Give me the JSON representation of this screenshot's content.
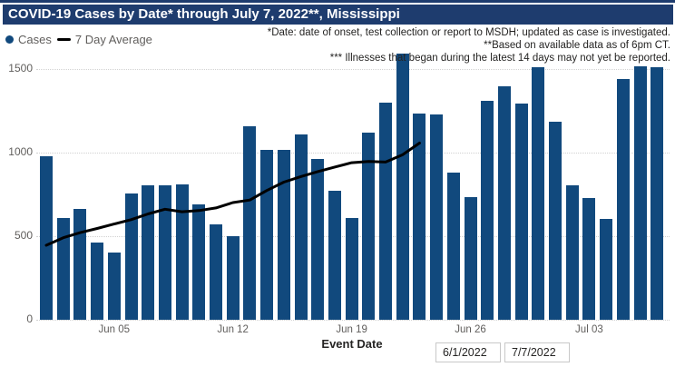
{
  "title": "COVID-19 Cases by Date* through July 7, 2022**, Mississippi",
  "legend": {
    "cases_label": "Cases",
    "avg_label": "7 Day Average"
  },
  "notes": [
    "*Date: date of onset, test collection or report to MSDH; updated as case is investigated.",
    "**Based on available data as of 6pm CT.",
    "*** Illnesses that began during the latest 14 days may not yet be reported."
  ],
  "x_axis": {
    "label": "Event Date",
    "ticks": [
      "Jun 05",
      "Jun 12",
      "Jun 19",
      "Jun 26",
      "Jul 03"
    ],
    "tick_indices": [
      4,
      11,
      18,
      25,
      32
    ]
  },
  "y_axis": {
    "ticks": [
      0,
      500,
      1000,
      1500
    ]
  },
  "date_filters": {
    "start": "6/1/2022",
    "end": "7/7/2022"
  },
  "colors": {
    "bar": "#11497d",
    "line": "#000000",
    "title_bg": "#1e3c6e",
    "axis_text": "#605e5c",
    "note_text": "#252423"
  },
  "chart_data": {
    "type": "bar",
    "title": "COVID-19 Cases by Date* through July 7, 2022**, Mississippi",
    "xlabel": "Event Date",
    "ylabel": "",
    "ylim": [
      0,
      1600
    ],
    "grid": "horizontal-dotted",
    "legend_position": "top-left",
    "categories": [
      "Jun 01",
      "Jun 02",
      "Jun 03",
      "Jun 04",
      "Jun 05",
      "Jun 06",
      "Jun 07",
      "Jun 08",
      "Jun 09",
      "Jun 10",
      "Jun 11",
      "Jun 12",
      "Jun 13",
      "Jun 14",
      "Jun 15",
      "Jun 16",
      "Jun 17",
      "Jun 18",
      "Jun 19",
      "Jun 20",
      "Jun 21",
      "Jun 22",
      "Jun 23",
      "Jun 24",
      "Jun 25",
      "Jun 26",
      "Jun 27",
      "Jun 28",
      "Jun 29",
      "Jun 30",
      "Jul 01",
      "Jul 02",
      "Jul 03",
      "Jul 04",
      "Jul 05",
      "Jul 06",
      "Jul 07"
    ],
    "series": [
      {
        "name": "Cases",
        "type": "bar",
        "values": [
          975,
          610,
          660,
          460,
          400,
          755,
          805,
          805,
          810,
          690,
          570,
          500,
          1155,
          1015,
          1015,
          1105,
          960,
          770,
          605,
          1120,
          1295,
          1590,
          1230,
          1225,
          880,
          730,
          1305,
          1395,
          1290,
          1510,
          1185,
          805,
          725,
          600,
          1440,
          1515,
          1510
        ]
      },
      {
        "name": "7 Day Average",
        "type": "line",
        "note": "line stops at Jun 23 (latest 14 days not averaged)",
        "values": [
          445,
          490,
          520,
          545,
          572,
          598,
          632,
          660,
          645,
          652,
          668,
          700,
          715,
          772,
          822,
          855,
          885,
          912,
          938,
          945,
          942,
          985,
          1055
        ]
      }
    ]
  }
}
